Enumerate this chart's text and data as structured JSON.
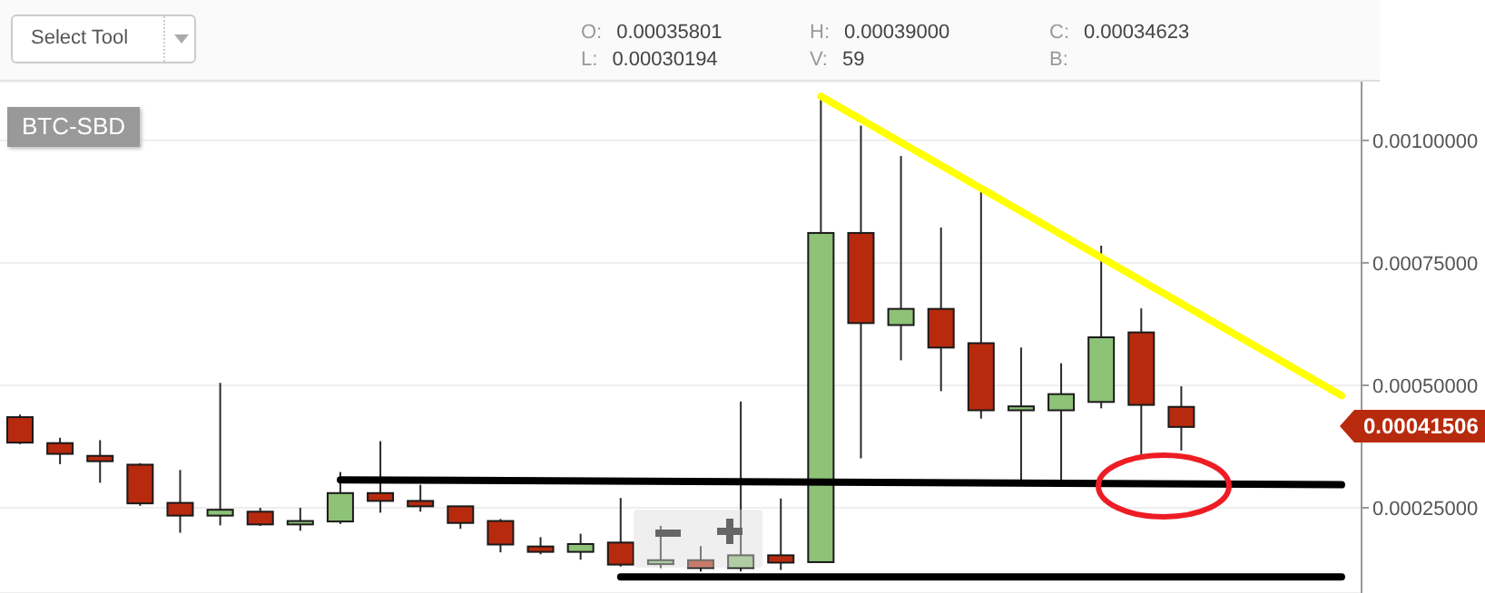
{
  "chart_data": {
    "type": "candlestick",
    "title": "BTC-SBD",
    "categories": [
      null,
      null,
      null,
      null,
      null,
      null,
      null,
      null,
      null,
      null,
      null,
      null,
      null,
      null,
      null,
      null,
      null,
      null,
      null,
      null,
      null,
      null,
      null,
      null,
      null,
      null,
      null,
      null,
      null,
      null,
      null,
      null,
      null,
      null
    ],
    "ohlc": [
      [
        0.000435,
        0.00044,
        0.00038,
        0.000383
      ],
      [
        0.000382,
        0.000393,
        0.000339,
        0.00036
      ],
      [
        0.000356,
        0.000388,
        0.000301,
        0.000345
      ],
      [
        0.000338,
        0.000341,
        0.000254,
        0.000259
      ],
      [
        0.00026,
        0.000327,
        0.000199,
        0.000234
      ],
      [
        0.000234,
        0.000505,
        0.000214,
        0.000246
      ],
      [
        0.000242,
        0.00025,
        0.000213,
        0.000216
      ],
      [
        0.000216,
        0.00025,
        0.000203,
        0.000223
      ],
      [
        0.000222,
        0.000323,
        0.000217,
        0.00028
      ],
      [
        0.00028,
        0.000386,
        0.00024,
        0.000264
      ],
      [
        0.000264,
        0.000297,
        0.000242,
        0.000253
      ],
      [
        0.000253,
        0.000253,
        0.000207,
        0.000219
      ],
      [
        0.000223,
        0.000227,
        0.000159,
        0.000175
      ],
      [
        0.000171,
        0.00019,
        0.000155,
        0.00016
      ],
      [
        0.00016,
        0.000197,
        0.000144,
        0.000176
      ],
      [
        0.000179,
        0.00027,
        0.00013,
        0.000134
      ],
      [
        0.000135,
        0.000213,
        0.000127,
        0.000143
      ],
      [
        0.000143,
        0.000172,
        0.00012,
        0.000127
      ],
      [
        0.000127,
        0.000467,
        0.00012,
        0.000153
      ],
      [
        0.000153,
        0.000269,
        0.000123,
        0.000138
      ],
      [
        0.000139,
        0.001086,
        0.000139,
        0.000811
      ],
      [
        0.000811,
        0.00103,
        0.000351,
        0.000627
      ],
      [
        0.000623,
        0.000968,
        0.000551,
        0.000656
      ],
      [
        0.000656,
        0.000822,
        0.000488,
        0.000577
      ],
      [
        0.000586,
        0.000895,
        0.000432,
        0.000449
      ],
      [
        0.000449,
        0.000577,
        0.000306,
        0.000457
      ],
      [
        0.000449,
        0.000545,
        0.000306,
        0.000482
      ],
      [
        0.000466,
        0.000785,
        0.000453,
        0.000598
      ],
      [
        0.000608,
        0.000657,
        0.000349,
        0.00046
      ],
      [
        0.000456,
        0.000498,
        0.000367,
        0.000415
      ],
      null,
      null,
      null,
      null
    ],
    "colors": [
      "#b82a0e",
      "#b82a0e",
      "#b82a0e",
      "#b82a0e",
      "#b82a0e",
      "#8dc277",
      "#b82a0e",
      "#8dc277",
      "#8dc277",
      "#b82a0e",
      "#b82a0e",
      "#b82a0e",
      "#b82a0e",
      "#b82a0e",
      "#8dc277",
      "#b82a0e",
      "#8dc277",
      "#b82a0e",
      "#8dc277",
      "#b82a0e",
      "#8dc277",
      "#b82a0e",
      "#8dc277",
      "#b82a0e",
      "#b82a0e",
      "#8dc277",
      "#8dc277",
      "#8dc277",
      "#b82a0e",
      "#b82a0e",
      null,
      null,
      null,
      null
    ],
    "series": [
      {
        "type": "line",
        "color": "#ffff00",
        "values": [
          null,
          null,
          null,
          null,
          null,
          null,
          null,
          null,
          null,
          null,
          null,
          null,
          null,
          null,
          null,
          null,
          null,
          null,
          null,
          null,
          0.00109,
          null,
          null,
          null,
          null,
          null,
          null,
          null,
          null,
          null,
          null,
          null,
          null,
          0.000479
        ]
      },
      {
        "type": "line",
        "color": "#000000",
        "values": [
          null,
          null,
          null,
          null,
          null,
          null,
          null,
          null,
          0.000307,
          null,
          null,
          null,
          null,
          null,
          null,
          null,
          null,
          null,
          null,
          null,
          null,
          null,
          null,
          null,
          null,
          null,
          null,
          null,
          null,
          null,
          null,
          null,
          null,
          0.000297
        ]
      },
      {
        "type": "line",
        "color": "#000000",
        "values": [
          null,
          null,
          null,
          null,
          null,
          null,
          null,
          null,
          null,
          null,
          null,
          null,
          null,
          null,
          null,
          0.000109,
          null,
          null,
          null,
          null,
          null,
          null,
          null,
          null,
          null,
          null,
          null,
          null,
          null,
          null,
          null,
          null,
          null,
          0.000109
        ]
      }
    ],
    "ylim": [
      7.6e-05,
      0.00112
    ],
    "yticks": [
      {
        "value": 0.00025,
        "label": "0.00025000"
      },
      {
        "value": 0.0005,
        "label": "0.00050000"
      },
      {
        "value": 0.00075,
        "label": "0.00075000"
      },
      {
        "value": 0.001,
        "label": "0.00100000"
      }
    ],
    "grid": "y",
    "tick_labels": "y",
    "annotations": [
      "Select Tool",
      "O: 0.00035801",
      "L: 0.00030194",
      "H: 0.00039000",
      "V: 59",
      "C: 0.00034623",
      "B:",
      "0.00041506"
    ]
  }
}
